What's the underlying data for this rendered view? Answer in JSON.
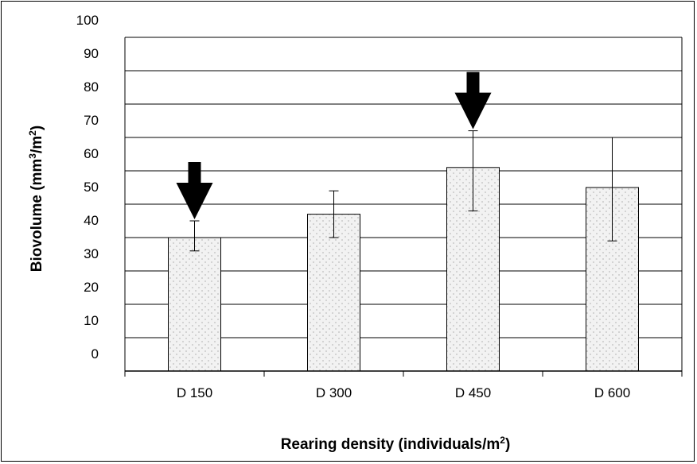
{
  "chart_data": {
    "type": "bar",
    "title": "",
    "xlabel": "Rearing density (individuals/m",
    "xlabel_sup": "2",
    "xlabel_tail": ")",
    "ylabel": "Biovolume (mm",
    "ylabel_sup1": "3",
    "ylabel_mid": "/m",
    "ylabel_sup2": "2",
    "ylabel_tail": ")",
    "categories": [
      "D 150",
      "D 300",
      "D 450",
      "D 600"
    ],
    "values": [
      40,
      47,
      61,
      55
    ],
    "errors": [
      {
        "low": 36,
        "high": 45
      },
      {
        "low": 40,
        "high": 54
      },
      {
        "low": 48,
        "high": 72
      },
      {
        "low": 39,
        "high": 70
      }
    ],
    "arrows_on": [
      "D 150",
      "D 450"
    ],
    "ylim": [
      0,
      100
    ],
    "yticks": [
      0,
      10,
      20,
      30,
      40,
      50,
      60,
      70,
      80,
      90,
      100
    ],
    "grid": true,
    "bar_fill": "#f2f2f2",
    "bar_dot_color": "#bdbdbd",
    "arrow_color": "#000000"
  }
}
